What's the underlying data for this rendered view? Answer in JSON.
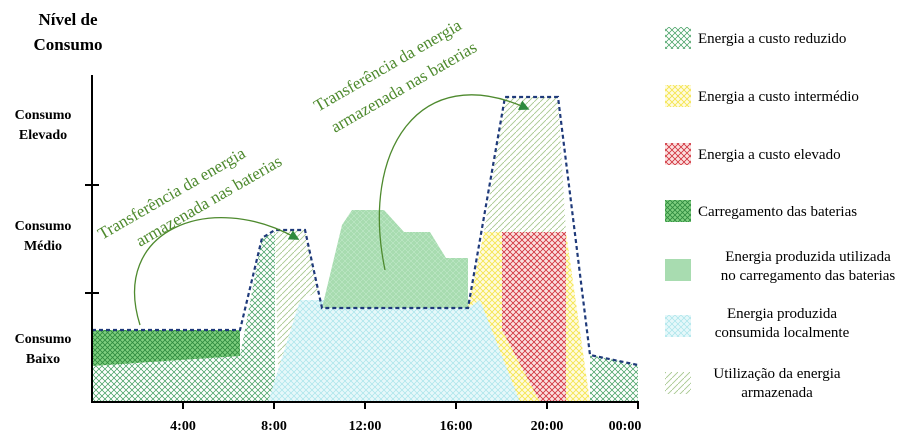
{
  "y_axis": {
    "title": [
      "Nível de",
      "Consumo"
    ],
    "levels": [
      [
        "Consumo",
        "Elevado"
      ],
      [
        "Consumo",
        "Médio"
      ],
      [
        "Consumo",
        "Baixo"
      ]
    ]
  },
  "x_axis": {
    "ticks": [
      "4:00",
      "8:00",
      "12:00",
      "16:00",
      "20:00",
      "00:00"
    ]
  },
  "annotations": [
    [
      "Transferência da energia",
      "armazenada nas baterias"
    ],
    [
      "Transferência da energia",
      "armazenada nas baterias"
    ]
  ],
  "legend": [
    [
      "Energia a custo reduzido"
    ],
    [
      "Energia a custo intermédio"
    ],
    [
      "Energia a custo elevado"
    ],
    [
      "Carregamento das baterias"
    ],
    [
      "Energia produzida utilizada",
      "no carregamento das baterias"
    ],
    [
      "Energia produzida",
      "consumida localmente"
    ],
    [
      "Utilização da energia",
      "armazenada"
    ]
  ]
}
